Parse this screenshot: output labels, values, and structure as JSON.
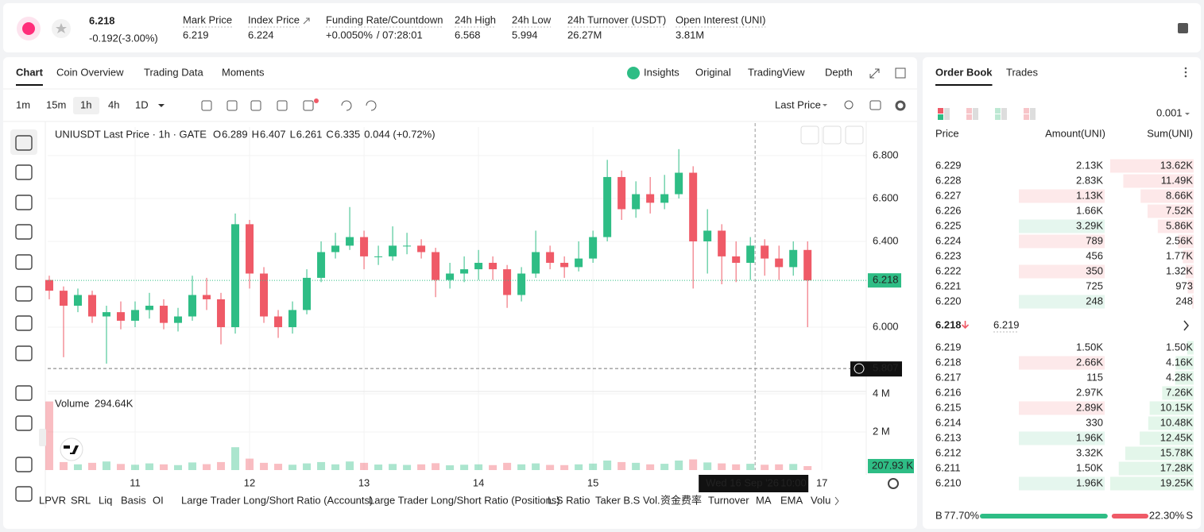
{
  "header": {
    "price": "6.218",
    "change": "-0.192(-3.00%)",
    "stats": [
      {
        "label": "Mark Price",
        "value": "6.219"
      },
      {
        "label": "Index Price",
        "value": "6.224"
      },
      {
        "label": "Funding Rate/Countdown",
        "value": "+0.0050%",
        "extra": "/ 07:28:01"
      },
      {
        "label": "24h High",
        "value": "6.568"
      },
      {
        "label": "24h Low",
        "value": "5.994"
      },
      {
        "label": "24h Turnover (USDT)",
        "value": "26.27M"
      },
      {
        "label": "Open Interest (UNI)",
        "value": "3.81M"
      }
    ]
  },
  "tabs": [
    "Chart",
    "Coin Overview",
    "Trading Data",
    "Moments"
  ],
  "views": [
    "Insights",
    "Original",
    "TradingView",
    "Depth"
  ],
  "timeframes": [
    "1m",
    "15m",
    "1h",
    "4h",
    "1D"
  ],
  "price_source": "Last Price",
  "legend": {
    "symbol": "UNIUSDT Last Price · 1h · GATE",
    "items": [
      {
        "k": "O",
        "v": "6.289"
      },
      {
        "k": "H",
        "v": "6.407"
      },
      {
        "k": "L",
        "v": "6.261"
      },
      {
        "k": "C",
        "v": "6.335"
      }
    ],
    "change": "0.044 (+0.72%)"
  },
  "chart_data": {
    "type": "candlestick",
    "up_color": "#2ebd85",
    "down_color": "#ef5a67",
    "x": [
      6,
      9,
      12,
      15,
      18,
      21,
      24,
      27,
      30,
      33,
      36,
      39,
      42,
      45,
      48,
      51,
      54,
      57,
      60,
      63,
      66,
      69,
      72,
      75,
      78,
      81,
      84,
      87,
      90,
      93,
      96,
      99,
      102,
      105,
      108,
      111,
      114,
      117,
      120,
      123,
      126,
      129,
      132,
      135,
      138,
      141,
      144,
      147,
      150,
      153,
      156,
      159,
      162,
      165
    ],
    "open": [
      6.22,
      6.17,
      6.1,
      6.15,
      6.05,
      6.07,
      6.03,
      6.08,
      6.1,
      6.02,
      6.05,
      6.15,
      6.13,
      6.0,
      6.48,
      6.25,
      6.05,
      6.0,
      6.08,
      6.23,
      6.35,
      6.38,
      6.42,
      6.33,
      6.33,
      6.38,
      6.38,
      6.35,
      6.22,
      6.25,
      6.27,
      6.3,
      6.27,
      6.15,
      6.25,
      6.35,
      6.3,
      6.28,
      6.32,
      6.42,
      6.7,
      6.55,
      6.62,
      6.58,
      6.62,
      6.72,
      6.4,
      6.45,
      6.33,
      6.3,
      6.38,
      6.32,
      6.28,
      6.36
    ],
    "high": [
      6.24,
      6.19,
      6.18,
      6.17,
      6.1,
      6.12,
      6.12,
      6.16,
      6.13,
      6.09,
      6.24,
      6.23,
      6.16,
      6.53,
      6.5,
      6.28,
      6.08,
      6.12,
      6.27,
      6.4,
      6.44,
      6.56,
      6.45,
      6.38,
      6.47,
      6.44,
      6.41,
      6.37,
      6.3,
      6.33,
      6.36,
      6.33,
      6.29,
      6.28,
      6.45,
      6.38,
      6.33,
      6.4,
      6.45,
      6.78,
      6.73,
      6.68,
      6.7,
      6.71,
      6.83,
      6.75,
      6.55,
      6.48,
      6.4,
      6.42,
      6.41,
      6.38,
      6.4,
      6.4
    ],
    "low": [
      6.13,
      5.86,
      6.07,
      6.02,
      5.83,
      5.99,
      6.0,
      6.04,
      5.99,
      5.98,
      6.03,
      6.08,
      5.92,
      5.97,
      6.18,
      6.02,
      5.95,
      5.97,
      6.06,
      6.21,
      6.32,
      6.36,
      6.27,
      6.29,
      6.31,
      6.34,
      6.32,
      6.14,
      6.18,
      6.21,
      6.22,
      6.22,
      6.09,
      6.12,
      6.23,
      6.27,
      6.23,
      6.26,
      6.3,
      6.4,
      6.5,
      6.51,
      6.53,
      6.55,
      6.6,
      6.18,
      6.25,
      6.2,
      6.21,
      6.22,
      6.24,
      6.22,
      6.24,
      6.0
    ],
    "close": [
      6.17,
      6.1,
      6.15,
      6.05,
      6.07,
      6.03,
      6.08,
      6.1,
      6.02,
      6.05,
      6.15,
      6.13,
      6.0,
      6.48,
      6.25,
      6.05,
      6.0,
      6.08,
      6.23,
      6.35,
      6.38,
      6.42,
      6.33,
      6.33,
      6.38,
      6.38,
      6.35,
      6.22,
      6.25,
      6.27,
      6.3,
      6.27,
      6.15,
      6.25,
      6.35,
      6.3,
      6.28,
      6.32,
      6.42,
      6.7,
      6.55,
      6.62,
      6.58,
      6.62,
      6.72,
      6.4,
      6.45,
      6.33,
      6.3,
      6.38,
      6.32,
      6.28,
      6.36,
      6.218
    ],
    "volume": [
      3600000,
      420000,
      300000,
      380000,
      450000,
      320000,
      280000,
      350000,
      300000,
      260000,
      400000,
      310000,
      420000,
      1200000,
      600000,
      380000,
      330000,
      280000,
      350000,
      420000,
      300000,
      450000,
      380000,
      290000,
      320000,
      270000,
      300000,
      360000,
      250000,
      280000,
      300000,
      260000,
      380000,
      300000,
      350000,
      270000,
      260000,
      300000,
      340000,
      500000,
      420000,
      380000,
      300000,
      330000,
      500000,
      560000,
      400000,
      350000,
      300000,
      330000,
      280000,
      300000,
      320000,
      207930
    ],
    "xlim": [
      5.67,
      177.3
    ],
    "xticks": [
      {
        "value": 24,
        "label": "11"
      },
      {
        "value": 48,
        "label": "12"
      },
      {
        "value": 72,
        "label": "13"
      },
      {
        "value": 96,
        "label": "14"
      },
      {
        "value": 120,
        "label": "15"
      },
      {
        "value": 168,
        "label": "17"
      }
    ],
    "ylim": [
      5.704,
      6.933
    ],
    "yticks": [
      {
        "value": 6.0,
        "label": "6.000"
      },
      {
        "value": 6.4,
        "label": "6.400"
      },
      {
        "value": 6.6,
        "label": "6.600"
      },
      {
        "value": 6.8,
        "label": "6.800"
      }
    ],
    "last_price": {
      "value": 6.218,
      "label": "6.218"
    },
    "crosshair": {
      "y": 5.807,
      "y_label": "5.807",
      "x": 154,
      "x_label": "Wed 16 Sep '26",
      "x_time": "10:00"
    },
    "volume_title": "Volume",
    "volume_value": "294.64K",
    "volume_last": "207.93 K",
    "volume_ylim": [
      0,
      4000000
    ],
    "volume_yticks": [
      {
        "value": 2000000,
        "label": "2 M"
      },
      {
        "value": 4000000,
        "label": "4 M"
      }
    ],
    "grid": true
  },
  "indicators": [
    "LPVR",
    "SRL",
    "Liq",
    "Basis",
    "OI",
    "Large Trader Long/Short Ratio (Accounts)",
    "Large Trader Long/Short Ratio (Positions)",
    "L.S Ratio",
    "Taker B.S Vol.",
    "资金费率",
    "Turnover",
    "MA",
    "EMA",
    "Volu"
  ],
  "orderbook": {
    "tabs": [
      "Order Book",
      "Trades"
    ],
    "precision": "0.001",
    "columns": [
      "Price",
      "Amount(UNI)",
      "Sum(UNI)"
    ],
    "asks": [
      {
        "price": "6.229",
        "amount": "2.13K",
        "sum": {
          "value": 13620,
          "label": "13.62K"
        }
      },
      {
        "price": "6.228",
        "amount": "2.83K",
        "sum": {
          "value": 11490,
          "label": "11.49K"
        }
      },
      {
        "price": "6.227",
        "amount": "1.13K",
        "sum": {
          "value": 8660,
          "label": "8.66K"
        },
        "hl": "red"
      },
      {
        "price": "6.226",
        "amount": "1.66K",
        "sum": {
          "value": 7520,
          "label": "7.52K"
        }
      },
      {
        "price": "6.225",
        "amount": "3.29K",
        "sum": {
          "value": 5860,
          "label": "5.86K"
        },
        "hl": "green"
      },
      {
        "price": "6.224",
        "amount": "789",
        "sum": {
          "value": 2560,
          "label": "2.56K"
        },
        "hl": "red"
      },
      {
        "price": "6.223",
        "amount": "456",
        "sum": {
          "value": 1770,
          "label": "1.77K"
        }
      },
      {
        "price": "6.222",
        "amount": "350",
        "sum": {
          "value": 1320,
          "label": "1.32K"
        },
        "hl": "red"
      },
      {
        "price": "6.221",
        "amount": "725",
        "sum": {
          "value": 973,
          "label": "973"
        }
      },
      {
        "price": "6.220",
        "amount": "248",
        "sum": {
          "value": 248,
          "label": "248"
        },
        "hl": "green"
      }
    ],
    "mid": "6.218",
    "mark": "6.219",
    "bids": [
      {
        "price": "6.219",
        "amount": "1.50K",
        "sum": {
          "value": 1500,
          "label": "1.50K"
        }
      },
      {
        "price": "6.218",
        "amount": "2.66K",
        "sum": {
          "value": 4160,
          "label": "4.16K"
        },
        "hl": "red"
      },
      {
        "price": "6.217",
        "amount": "115",
        "sum": {
          "value": 4280,
          "label": "4.28K"
        }
      },
      {
        "price": "6.216",
        "amount": "2.97K",
        "sum": {
          "value": 7260,
          "label": "7.26K"
        }
      },
      {
        "price": "6.215",
        "amount": "2.89K",
        "sum": {
          "value": 10150,
          "label": "10.15K"
        },
        "hl": "red"
      },
      {
        "price": "6.214",
        "amount": "330",
        "sum": {
          "value": 10480,
          "label": "10.48K"
        }
      },
      {
        "price": "6.213",
        "amount": "1.96K",
        "sum": {
          "value": 12450,
          "label": "12.45K"
        },
        "hl": "green"
      },
      {
        "price": "6.212",
        "amount": "3.32K",
        "sum": {
          "value": 15780,
          "label": "15.78K"
        }
      },
      {
        "price": "6.211",
        "amount": "1.50K",
        "sum": {
          "value": 17280,
          "label": "17.28K"
        }
      },
      {
        "price": "6.210",
        "amount": "1.96K",
        "sum": {
          "value": 19250,
          "label": "19.25K"
        },
        "hl": "green"
      }
    ],
    "ratio": {
      "buy_label": "B",
      "buy": {
        "value": 77.7,
        "label": "77.70%"
      },
      "sell": {
        "value": 22.3,
        "label": "22.30%"
      },
      "sell_label": "S"
    }
  }
}
